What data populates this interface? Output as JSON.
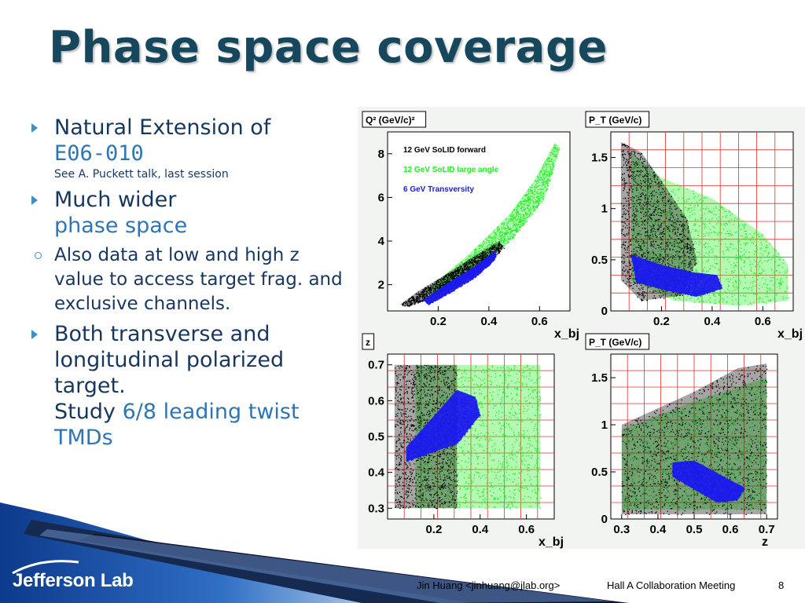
{
  "slide": {
    "title": "Phase space coverage",
    "page_number": "8"
  },
  "bullets": [
    {
      "prefix": "Natural Extension of",
      "accent": "E06-010",
      "note": "See A. Puckett talk, last session"
    },
    {
      "prefix": "Much wider",
      "accent": "phase space",
      "sub": "Also data at low and high z value to access target frag. and exclusive channels."
    },
    {
      "prefix": "Both transverse and longitudinal polarized target.",
      "line2": "Study",
      "accent": "6/8 leading twist TMDs"
    }
  ],
  "footer": {
    "author": "Jin Huang <jinhuang@jlab.org>",
    "meeting": "Hall A Collaboration Meeting",
    "logo_text": "Jefferson Lab"
  },
  "colors": {
    "title": "#17475c",
    "text": "#17375e",
    "accent": "#2e75b6",
    "grid": "#e03030",
    "forward": "#000000",
    "large_angle": "#22ee22",
    "transversity": "#1a1aee"
  },
  "chart_data": [
    {
      "type": "scatter",
      "ylabel": "Q² (GeV/c)²",
      "xlabel": "x_bj",
      "xlim": [
        0.0,
        0.72
      ],
      "ylim": [
        0.8,
        9.0
      ],
      "xticks": [
        "0.2",
        "0.4",
        "0.6"
      ],
      "xtick_values": [
        0.2,
        0.4,
        0.6
      ],
      "yticks": [
        "2",
        "4",
        "6",
        "8"
      ],
      "ytick_values": [
        2,
        4,
        6,
        8
      ],
      "grid": false,
      "legend": [
        "12 GeV SoLID forward",
        "12 GeV SoLID large angle",
        "6 GeV Transversity"
      ],
      "series": [
        {
          "name": "12 GeV SoLID large angle",
          "region": [
            [
              0.14,
              1.6
            ],
            [
              0.32,
              3.4
            ],
            [
              0.48,
              5.2
            ],
            [
              0.58,
              6.8
            ],
            [
              0.66,
              8.5
            ],
            [
              0.68,
              8.3
            ],
            [
              0.62,
              6.0
            ],
            [
              0.5,
              4.2
            ],
            [
              0.38,
              3.0
            ],
            [
              0.2,
              1.6
            ]
          ]
        },
        {
          "name": "12 GeV SoLID forward",
          "region": [
            [
              0.05,
              1.1
            ],
            [
              0.12,
              1.7
            ],
            [
              0.22,
              2.4
            ],
            [
              0.34,
              3.3
            ],
            [
              0.44,
              4.0
            ],
            [
              0.46,
              3.7
            ],
            [
              0.4,
              3.0
            ],
            [
              0.3,
              2.2
            ],
            [
              0.2,
              1.5
            ],
            [
              0.08,
              1.0
            ]
          ]
        },
        {
          "name": "6 GeV Transversity",
          "region": [
            [
              0.14,
              1.3
            ],
            [
              0.24,
              2.1
            ],
            [
              0.34,
              2.8
            ],
            [
              0.43,
              3.6
            ],
            [
              0.42,
              3.1
            ],
            [
              0.34,
              2.3
            ],
            [
              0.24,
              1.6
            ],
            [
              0.16,
              1.1
            ]
          ]
        }
      ]
    },
    {
      "type": "scatter",
      "ylabel": "P_T (GeV/c)",
      "xlabel": "x_bj",
      "xlim": [
        0.0,
        0.72
      ],
      "ylim": [
        0.0,
        1.75
      ],
      "xticks": [
        "0.2",
        "0.4",
        "0.6"
      ],
      "xtick_values": [
        0.2,
        0.4,
        0.6
      ],
      "yticks": [
        "0",
        "0.5",
        "1",
        "1.5"
      ],
      "ytick_values": [
        0,
        0.5,
        1,
        1.5
      ],
      "grid": true,
      "series": [
        {
          "name": "12 GeV SoLID large angle",
          "region": [
            [
              0.08,
              1.55
            ],
            [
              0.2,
              1.3
            ],
            [
              0.4,
              1.1
            ],
            [
              0.6,
              0.75
            ],
            [
              0.7,
              0.45
            ],
            [
              0.7,
              0.1
            ],
            [
              0.5,
              0.05
            ],
            [
              0.25,
              0.1
            ],
            [
              0.08,
              0.3
            ]
          ]
        },
        {
          "name": "12 GeV SoLID forward",
          "region": [
            [
              0.04,
              1.65
            ],
            [
              0.12,
              1.55
            ],
            [
              0.22,
              1.2
            ],
            [
              0.3,
              0.9
            ],
            [
              0.34,
              0.5
            ],
            [
              0.28,
              0.15
            ],
            [
              0.12,
              0.1
            ],
            [
              0.04,
              0.3
            ]
          ]
        },
        {
          "name": "6 GeV Transversity",
          "region": [
            [
              0.08,
              0.55
            ],
            [
              0.2,
              0.45
            ],
            [
              0.32,
              0.38
            ],
            [
              0.42,
              0.35
            ],
            [
              0.44,
              0.22
            ],
            [
              0.34,
              0.14
            ],
            [
              0.22,
              0.2
            ],
            [
              0.1,
              0.28
            ]
          ]
        }
      ]
    },
    {
      "type": "scatter",
      "ylabel": "z",
      "xlabel": "x_bj",
      "xlim": [
        0.0,
        0.72
      ],
      "ylim": [
        0.27,
        0.73
      ],
      "xticks": [
        "0.2",
        "0.4",
        "0.6"
      ],
      "xtick_values": [
        0.2,
        0.4,
        0.6
      ],
      "yticks": [
        "0.3",
        "0.4",
        "0.5",
        "0.6",
        "0.7"
      ],
      "ytick_values": [
        0.3,
        0.4,
        0.5,
        0.6,
        0.7
      ],
      "grid": true,
      "series": [
        {
          "name": "12 GeV SoLID large angle",
          "region": [
            [
              0.12,
              0.7
            ],
            [
              0.48,
              0.7
            ],
            [
              0.66,
              0.7
            ],
            [
              0.66,
              0.3
            ],
            [
              0.48,
              0.3
            ],
            [
              0.12,
              0.3
            ]
          ]
        },
        {
          "name": "12 GeV SoLID forward",
          "region": [
            [
              0.03,
              0.7
            ],
            [
              0.26,
              0.7
            ],
            [
              0.3,
              0.7
            ],
            [
              0.3,
              0.3
            ],
            [
              0.2,
              0.3
            ],
            [
              0.03,
              0.3
            ]
          ]
        },
        {
          "name": "6 GeV Transversity",
          "region": [
            [
              0.08,
              0.47
            ],
            [
              0.3,
              0.63
            ],
            [
              0.38,
              0.61
            ],
            [
              0.4,
              0.56
            ],
            [
              0.3,
              0.48
            ],
            [
              0.08,
              0.43
            ]
          ]
        }
      ]
    },
    {
      "type": "scatter",
      "ylabel": "P_T (GeV/c)",
      "xlabel": "z",
      "xlim": [
        0.27,
        0.73
      ],
      "ylim": [
        0.0,
        1.75
      ],
      "xticks": [
        "0.3",
        "0.4",
        "0.5",
        "0.6",
        "0.7"
      ],
      "xtick_values": [
        0.3,
        0.4,
        0.5,
        0.6,
        0.7
      ],
      "yticks": [
        "0",
        "0.5",
        "1",
        "1.5"
      ],
      "ytick_values": [
        0,
        0.5,
        1,
        1.5
      ],
      "grid": true,
      "series": [
        {
          "name": "12 GeV SoLID large angle",
          "region": [
            [
              0.3,
              0.95
            ],
            [
              0.5,
              1.25
            ],
            [
              0.7,
              1.5
            ],
            [
              0.7,
              0.1
            ],
            [
              0.5,
              0.1
            ],
            [
              0.3,
              0.1
            ]
          ]
        },
        {
          "name": "12 GeV SoLID forward",
          "region": [
            [
              0.3,
              1.0
            ],
            [
              0.5,
              1.35
            ],
            [
              0.62,
              1.6
            ],
            [
              0.7,
              1.65
            ],
            [
              0.7,
              0.05
            ],
            [
              0.3,
              0.05
            ]
          ]
        },
        {
          "name": "6 GeV Transversity",
          "region": [
            [
              0.44,
              0.6
            ],
            [
              0.5,
              0.62
            ],
            [
              0.64,
              0.33
            ],
            [
              0.62,
              0.2
            ],
            [
              0.56,
              0.18
            ],
            [
              0.44,
              0.45
            ]
          ]
        }
      ]
    }
  ]
}
